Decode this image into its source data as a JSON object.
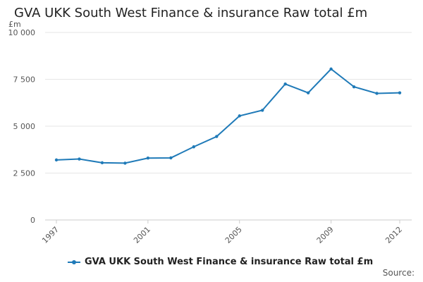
{
  "chart_data": {
    "type": "line",
    "title": "GVA UKK South West Finance & insurance Raw total £m",
    "ylabel": "£m",
    "xlabel": "",
    "x": [
      1997,
      1998,
      1999,
      2000,
      2001,
      2002,
      2003,
      2004,
      2005,
      2006,
      2007,
      2008,
      2009,
      2010,
      2011,
      2012
    ],
    "x_ticks": [
      "1997",
      "2001",
      "2005",
      "2009",
      "2012"
    ],
    "ylim": [
      0,
      10000
    ],
    "y_ticks": [
      "0",
      "2 500",
      "5 000",
      "7 500",
      "10 000"
    ],
    "series": [
      {
        "name": "GVA UKK South West Finance & insurance Raw total £m",
        "color": "#1f7ab8",
        "values": [
          3200,
          3250,
          3050,
          3030,
          3300,
          3310,
          3900,
          4450,
          5550,
          5850,
          7250,
          6780,
          8050,
          7100,
          6750,
          6780
        ]
      }
    ],
    "grid": true,
    "legend": "bottom"
  },
  "source_label": "Source:"
}
